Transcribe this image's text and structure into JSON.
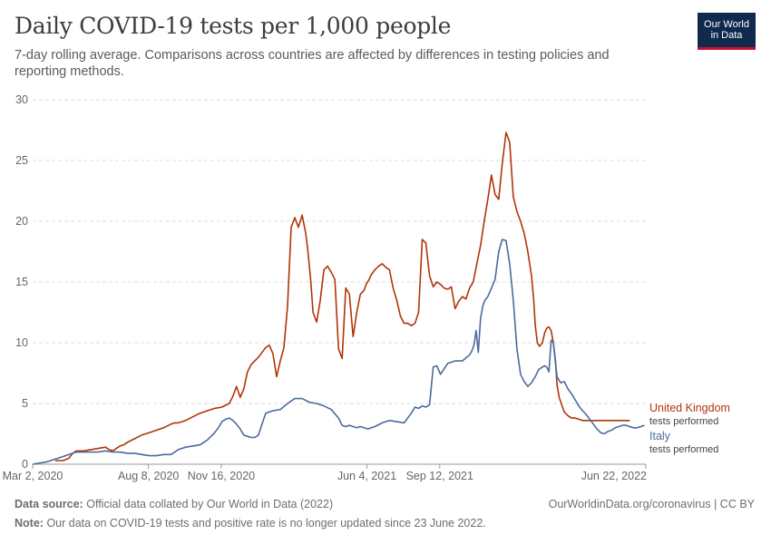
{
  "header": {
    "title": "Daily COVID-19 tests per 1,000 people",
    "subtitle": "7-day rolling average. Comparisons across countries are affected by differences in testing policies and reporting methods."
  },
  "logo": {
    "line1": "Our World",
    "line2": "in Data"
  },
  "footer": {
    "source_label": "Data source:",
    "source_text": "Official data collated by Our World in Data (2022)",
    "note_label": "Note:",
    "note_text": "Our data on COVID-19 tests and positive rate is no longer updated since 23 June 2022.",
    "credit": "OurWorldinData.org/coronavirus | CC BY"
  },
  "colors": {
    "uk": "#b13507",
    "italy": "#4c6a9c",
    "grid": "#dddddd",
    "axis": "#666666"
  },
  "chart_data": {
    "type": "line",
    "title": "Daily COVID-19 tests per 1,000 people",
    "xlabel": "",
    "ylabel": "",
    "ylim": [
      0,
      30
    ],
    "yticks": [
      0,
      5,
      10,
      15,
      20,
      25,
      30
    ],
    "xlim": [
      0,
      842
    ],
    "xticks": [
      {
        "day": 0,
        "label": "Mar 2, 2020"
      },
      {
        "day": 159,
        "label": "Aug 8, 2020"
      },
      {
        "day": 259,
        "label": "Nov 16, 2020"
      },
      {
        "day": 459,
        "label": "Jun 4, 2021"
      },
      {
        "day": 559,
        "label": "Sep 12, 2021"
      },
      {
        "day": 842,
        "label": "Jun 22, 2022"
      }
    ],
    "grid": true,
    "series": [
      {
        "name": "United Kingdom",
        "sublabel": "tests performed",
        "x": [
          31,
          42,
          50,
          55,
          60,
          65,
          70,
          80,
          90,
          100,
          105,
          110,
          115,
          120,
          125,
          130,
          140,
          150,
          160,
          170,
          180,
          190,
          195,
          200,
          205,
          210,
          220,
          230,
          240,
          250,
          260,
          270,
          275,
          280,
          285,
          290,
          295,
          300,
          305,
          310,
          315,
          320,
          325,
          330,
          335,
          340,
          345,
          350,
          355,
          360,
          365,
          370,
          375,
          378,
          382,
          385,
          390,
          395,
          400,
          405,
          410,
          415,
          420,
          425,
          430,
          435,
          440,
          445,
          450,
          455,
          458,
          462,
          465,
          470,
          475,
          480,
          485,
          490,
          495,
          500,
          505,
          510,
          515,
          520,
          525,
          530,
          535,
          540,
          545,
          550,
          555,
          560,
          565,
          570,
          575,
          580,
          585,
          590,
          595,
          600,
          605,
          610,
          615,
          620,
          625,
          630,
          635,
          640,
          645,
          650,
          655,
          660,
          665,
          670,
          675,
          680,
          685,
          688,
          690,
          693,
          696,
          700,
          703,
          706,
          709,
          712,
          715,
          718,
          720,
          723,
          727,
          730,
          735,
          740,
          745,
          750,
          755,
          760,
          765,
          770,
          775,
          780,
          785,
          790,
          795,
          800,
          805,
          810,
          815,
          820
        ],
        "values": [
          0.3,
          0.3,
          0.5,
          0.9,
          1.1,
          1.1,
          1.1,
          1.2,
          1.3,
          1.4,
          1.2,
          1.1,
          1.3,
          1.5,
          1.6,
          1.8,
          2.1,
          2.4,
          2.6,
          2.8,
          3.0,
          3.3,
          3.4,
          3.4,
          3.5,
          3.6,
          3.9,
          4.2,
          4.4,
          4.6,
          4.7,
          5.0,
          5.6,
          6.4,
          5.5,
          6.2,
          7.6,
          8.2,
          8.5,
          8.8,
          9.2,
          9.6,
          9.8,
          9.1,
          7.2,
          8.5,
          9.6,
          13.0,
          19.5,
          20.3,
          19.5,
          20.5,
          19.0,
          17.5,
          15.0,
          12.5,
          11.7,
          13.5,
          16.0,
          16.3,
          15.8,
          15.2,
          9.5,
          8.7,
          14.5,
          14.0,
          10.5,
          12.5,
          14.0,
          14.3,
          14.8,
          15.2,
          15.6,
          16.0,
          16.3,
          16.5,
          16.2,
          16.0,
          14.5,
          13.5,
          12.2,
          11.6,
          11.6,
          11.4,
          11.6,
          12.5,
          18.5,
          18.2,
          15.5,
          14.6,
          15.0,
          14.8,
          14.5,
          14.4,
          14.6,
          12.8,
          13.4,
          13.8,
          13.6,
          14.5,
          15.0,
          16.5,
          18.0,
          20.0,
          21.8,
          23.8,
          22.2,
          21.8,
          24.8,
          27.3,
          26.5,
          22.0,
          20.8,
          20.0,
          19.0,
          17.5,
          15.5,
          13.5,
          11.5,
          10.0,
          9.7,
          10.0,
          10.8,
          11.2,
          11.3,
          11.0,
          10.0,
          8.5,
          6.5,
          5.5,
          4.8,
          4.3,
          4.0,
          3.8,
          3.8,
          3.7,
          3.6,
          3.6,
          3.6,
          3.6,
          3.6,
          3.6,
          3.6,
          3.6,
          3.6,
          3.6,
          3.6,
          3.6,
          3.6,
          3.6
        ]
      },
      {
        "name": "Italy",
        "sublabel": "tests performed",
        "x": [
          0,
          20,
          40,
          50,
          60,
          70,
          80,
          90,
          100,
          110,
          120,
          130,
          140,
          150,
          160,
          170,
          180,
          190,
          200,
          210,
          220,
          230,
          240,
          250,
          255,
          260,
          265,
          270,
          275,
          280,
          285,
          290,
          295,
          300,
          305,
          310,
          320,
          330,
          340,
          350,
          360,
          370,
          380,
          390,
          400,
          410,
          420,
          425,
          430,
          435,
          440,
          445,
          450,
          455,
          460,
          470,
          480,
          490,
          500,
          510,
          520,
          525,
          530,
          535,
          540,
          545,
          550,
          555,
          560,
          570,
          580,
          590,
          600,
          603,
          606,
          609,
          612,
          615,
          618,
          621,
          625,
          630,
          635,
          640,
          645,
          650,
          655,
          660,
          665,
          670,
          675,
          680,
          685,
          690,
          695,
          700,
          703,
          706,
          709,
          712,
          715,
          720,
          725,
          730,
          735,
          740,
          745,
          750,
          755,
          760,
          765,
          770,
          775,
          780,
          785,
          790,
          795,
          800,
          805,
          810,
          815,
          820,
          825,
          830,
          835,
          840
        ],
        "values": [
          0,
          0.2,
          0.6,
          0.8,
          1.0,
          1.0,
          1.0,
          1.0,
          1.1,
          1.0,
          1.0,
          0.9,
          0.9,
          0.8,
          0.7,
          0.7,
          0.8,
          0.8,
          1.2,
          1.4,
          1.5,
          1.6,
          2.0,
          2.6,
          3.0,
          3.5,
          3.7,
          3.8,
          3.6,
          3.3,
          2.9,
          2.4,
          2.3,
          2.2,
          2.2,
          2.4,
          4.2,
          4.4,
          4.5,
          5.0,
          5.4,
          5.4,
          5.1,
          5.0,
          4.8,
          4.5,
          3.8,
          3.2,
          3.1,
          3.2,
          3.1,
          3.0,
          3.1,
          3.0,
          2.9,
          3.1,
          3.4,
          3.6,
          3.5,
          3.4,
          4.2,
          4.7,
          4.6,
          4.8,
          4.7,
          4.9,
          8.0,
          8.1,
          7.4,
          8.3,
          8.5,
          8.5,
          9.0,
          9.3,
          9.8,
          11.0,
          9.2,
          12.0,
          13.0,
          13.5,
          13.8,
          14.5,
          15.2,
          17.5,
          18.5,
          18.4,
          16.5,
          13.5,
          9.5,
          7.4,
          6.8,
          6.4,
          6.7,
          7.2,
          7.8,
          8.0,
          8.1,
          8.0,
          7.6,
          10.2,
          10.0,
          7.2,
          6.7,
          6.8,
          6.2,
          5.8,
          5.3,
          4.8,
          4.4,
          4.1,
          3.7,
          3.3,
          2.9,
          2.6,
          2.5,
          2.7,
          2.8,
          3.0,
          3.1,
          3.2,
          3.2,
          3.1,
          3.0,
          3.0,
          3.1,
          3.2
        ]
      }
    ]
  }
}
